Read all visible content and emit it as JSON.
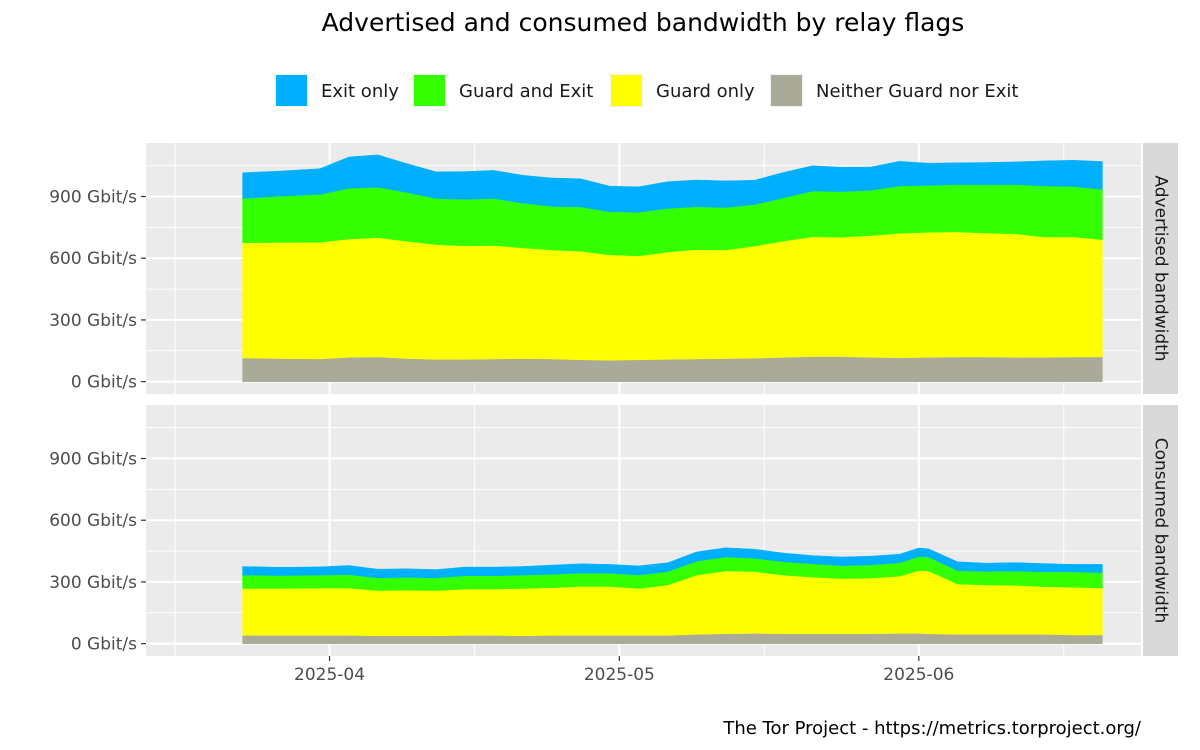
{
  "chart_data": {
    "type": "area",
    "title": "Advertised and consumed bandwidth by relay flags",
    "caption": "The Tor Project - https://metrics.torproject.org/",
    "legend": {
      "position": "top",
      "entries": [
        {
          "name": "Exit only",
          "color": "#00b0ff"
        },
        {
          "name": "Guard and Exit",
          "color": "#33ff00"
        },
        {
          "name": "Guard only",
          "color": "#ffff00"
        },
        {
          "name": "Neither Guard nor Exit",
          "color": "#aaaa99"
        }
      ]
    },
    "x_ticks": [
      "2025-04",
      "2025-05",
      "2025-06"
    ],
    "x_range": [
      "2025-03-13",
      "2025-06-24"
    ],
    "y_ticks": [
      "0 Gbit/s",
      "300 Gbit/s",
      "600 Gbit/s",
      "900 Gbit/s"
    ],
    "y_range_gbit": [
      -60,
      1160
    ],
    "stack_order": [
      "Neither Guard nor Exit",
      "Guard only",
      "Guard and Exit",
      "Exit only"
    ],
    "panels": [
      {
        "label": "Advertised bandwidth",
        "dates": [
          "2025-03-23",
          "2025-03-27",
          "2025-03-31",
          "2025-04-03",
          "2025-04-06",
          "2025-04-09",
          "2025-04-12",
          "2025-04-15",
          "2025-04-18",
          "2025-04-21",
          "2025-04-24",
          "2025-04-27",
          "2025-04-30",
          "2025-05-03",
          "2025-05-06",
          "2025-05-09",
          "2025-05-12",
          "2025-05-15",
          "2025-05-18",
          "2025-05-21",
          "2025-05-24",
          "2025-05-27",
          "2025-05-30",
          "2025-06-02",
          "2025-06-05",
          "2025-06-08",
          "2025-06-11",
          "2025-06-14",
          "2025-06-17",
          "2025-06-20"
        ],
        "series": [
          {
            "name": "Neither Guard nor Exit",
            "values": [
              115,
              112,
              110,
              118,
              120,
              112,
              108,
              108,
              110,
              112,
              110,
              106,
              104,
              106,
              108,
              110,
              112,
              114,
              118,
              122,
              122,
              118,
              116,
              118,
              120,
              120,
              118,
              118,
              120,
              120
            ]
          },
          {
            "name": "Guard only",
            "values": [
              560,
              565,
              568,
              575,
              580,
              570,
              558,
              552,
              552,
              538,
              530,
              528,
              512,
              505,
              522,
              532,
              528,
              545,
              565,
              582,
              580,
              592,
              605,
              608,
              608,
              602,
              600,
              585,
              583,
              570
            ]
          },
          {
            "name": "Guard and Exit",
            "values": [
              215,
              225,
              232,
              247,
              245,
              238,
              224,
              226,
              228,
              218,
              212,
              215,
              210,
              212,
              212,
              208,
              206,
              202,
              210,
              222,
              222,
              220,
              230,
              228,
              230,
              235,
              240,
              248,
              245,
              245
            ]
          },
          {
            "name": "Exit only",
            "values": [
              125,
              122,
              125,
              152,
              157,
              140,
              130,
              135,
              137,
              135,
              138,
              137,
              124,
              124,
              130,
              130,
              130,
              118,
              124,
              123,
              118,
              113,
              120,
              108,
              106,
              108,
              110,
              122,
              128,
              135
            ]
          }
        ]
      },
      {
        "label": "Consumed bandwidth",
        "dates": [
          "2025-03-23",
          "2025-03-27",
          "2025-03-31",
          "2025-04-03",
          "2025-04-06",
          "2025-04-09",
          "2025-04-12",
          "2025-04-15",
          "2025-04-18",
          "2025-04-21",
          "2025-04-24",
          "2025-04-27",
          "2025-04-30",
          "2025-05-03",
          "2025-05-06",
          "2025-05-09",
          "2025-05-12",
          "2025-05-15",
          "2025-05-18",
          "2025-05-21",
          "2025-05-24",
          "2025-05-27",
          "2025-05-30",
          "2025-06-01",
          "2025-06-02",
          "2025-06-05",
          "2025-06-08",
          "2025-06-11",
          "2025-06-14",
          "2025-06-17",
          "2025-06-20"
        ],
        "series": [
          {
            "name": "Neither Guard nor Exit",
            "values": [
              40,
              40,
              40,
              40,
              38,
              38,
              38,
              40,
              40,
              38,
              40,
              40,
              40,
              40,
              40,
              45,
              48,
              50,
              48,
              48,
              48,
              48,
              50,
              50,
              48,
              45,
              45,
              45,
              45,
              42,
              42
            ]
          },
          {
            "name": "Guard only",
            "values": [
              228,
              228,
              230,
              230,
              220,
              222,
              220,
              225,
              225,
              230,
              232,
              238,
              238,
              228,
              245,
              288,
              305,
              300,
              285,
              275,
              268,
              270,
              278,
              305,
              305,
              245,
              240,
              238,
              232,
              232,
              228
            ]
          },
          {
            "name": "Guard and Exit",
            "values": [
              65,
              63,
              63,
              65,
              62,
              62,
              62,
              65,
              65,
              65,
              65,
              65,
              65,
              65,
              65,
              68,
              68,
              65,
              65,
              65,
              63,
              65,
              65,
              68,
              68,
              65,
              66,
              70,
              72,
              75,
              75
            ]
          },
          {
            "name": "Exit only",
            "values": [
              42,
              40,
              40,
              45,
              42,
              42,
              40,
              42,
              42,
              42,
              45,
              45,
              42,
              45,
              43,
              45,
              45,
              44,
              42,
              40,
              42,
              42,
              42,
              42,
              40,
              43,
              40,
              41,
              40,
              36,
              40
            ]
          }
        ]
      }
    ],
    "grid": true
  }
}
